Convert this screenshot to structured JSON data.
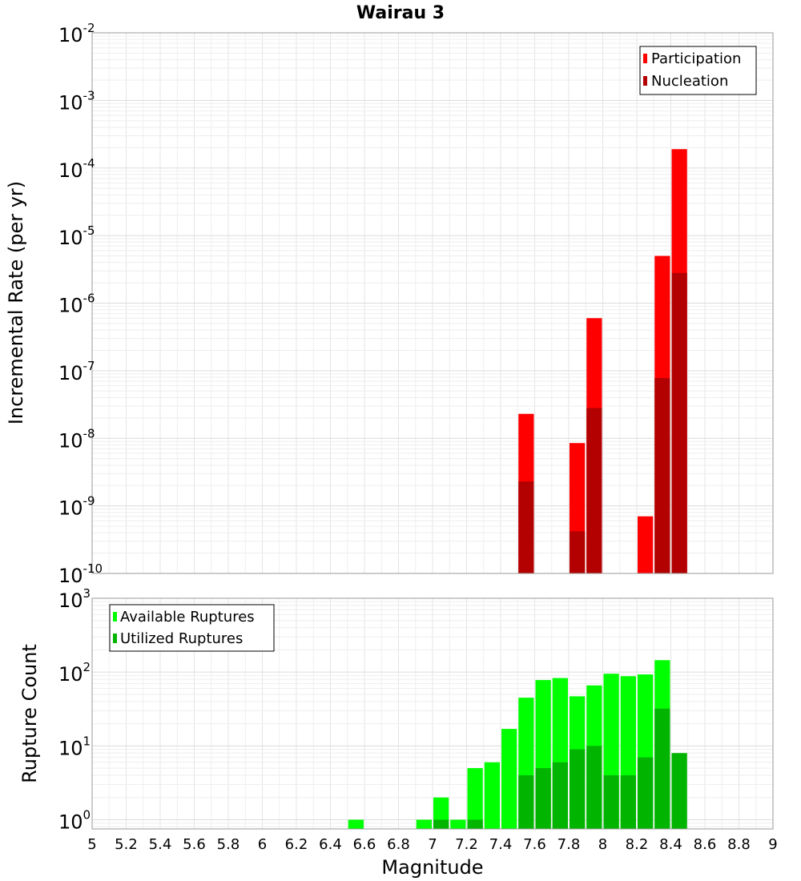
{
  "chart_data": [
    {
      "type": "bar",
      "title": "Wairau 3",
      "ylabel": "Incremental Rate (per yr)",
      "yscale": "log",
      "ylim": [
        1e-10,
        0.01
      ],
      "xlim": [
        5,
        9
      ],
      "y_tick_labels": [
        {
          "base": "10",
          "exp": "-10"
        },
        {
          "base": "10",
          "exp": "-9"
        },
        {
          "base": "10",
          "exp": "-8"
        },
        {
          "base": "10",
          "exp": "-7"
        },
        {
          "base": "10",
          "exp": "-6"
        },
        {
          "base": "10",
          "exp": "-5"
        },
        {
          "base": "10",
          "exp": "-4"
        },
        {
          "base": "10",
          "exp": "-3"
        },
        {
          "base": "10",
          "exp": "-2"
        }
      ],
      "grid": true,
      "legend_position": "top-right",
      "series": [
        {
          "name": "Participation",
          "color": "#ff0000",
          "points": [
            {
              "x": 7.55,
              "y": 2.3e-08
            },
            {
              "x": 7.85,
              "y": 8.5e-09
            },
            {
              "x": 7.95,
              "y": 6e-07
            },
            {
              "x": 8.25,
              "y": 7e-10
            },
            {
              "x": 8.35,
              "y": 5e-06
            },
            {
              "x": 8.45,
              "y": 0.00019
            }
          ]
        },
        {
          "name": "Nucleation",
          "color": "#b30000",
          "points": [
            {
              "x": 7.55,
              "y": 2.3e-09
            },
            {
              "x": 7.85,
              "y": 4.2e-10
            },
            {
              "x": 7.95,
              "y": 2.8e-08
            },
            {
              "x": 8.35,
              "y": 7.8e-08
            },
            {
              "x": 8.45,
              "y": 2.8e-06
            }
          ]
        }
      ]
    },
    {
      "type": "bar",
      "xlabel": "Magnitude",
      "ylabel": "Rupture Count",
      "yscale": "log",
      "ylim": [
        0.75,
        1000
      ],
      "xlim": [
        5,
        9
      ],
      "x_tick_labels": [
        "5",
        "5.2",
        "5.4",
        "5.6",
        "5.8",
        "6",
        "6.2",
        "6.4",
        "6.6",
        "6.8",
        "7",
        "7.2",
        "7.4",
        "7.6",
        "7.8",
        "8",
        "8.2",
        "8.4",
        "8.6",
        "8.8",
        "9"
      ],
      "y_tick_labels": [
        {
          "base": "10",
          "exp": "0"
        },
        {
          "base": "10",
          "exp": "1"
        },
        {
          "base": "10",
          "exp": "2"
        },
        {
          "base": "10",
          "exp": "3"
        }
      ],
      "grid": true,
      "legend_position": "top-left",
      "series": [
        {
          "name": "Available Ruptures",
          "color": "#00ff00",
          "points": [
            {
              "x": 6.55,
              "y": 1
            },
            {
              "x": 6.95,
              "y": 1
            },
            {
              "x": 7.05,
              "y": 2
            },
            {
              "x": 7.15,
              "y": 1
            },
            {
              "x": 7.25,
              "y": 5
            },
            {
              "x": 7.35,
              "y": 6
            },
            {
              "x": 7.45,
              "y": 17
            },
            {
              "x": 7.55,
              "y": 45
            },
            {
              "x": 7.65,
              "y": 78
            },
            {
              "x": 7.75,
              "y": 83
            },
            {
              "x": 7.85,
              "y": 47
            },
            {
              "x": 7.95,
              "y": 66
            },
            {
              "x": 8.05,
              "y": 95
            },
            {
              "x": 8.15,
              "y": 88
            },
            {
              "x": 8.25,
              "y": 93
            },
            {
              "x": 8.35,
              "y": 145
            }
          ]
        },
        {
          "name": "Utilized Ruptures",
          "color": "#00b400",
          "points": [
            {
              "x": 7.05,
              "y": 1
            },
            {
              "x": 7.25,
              "y": 1
            },
            {
              "x": 7.55,
              "y": 4
            },
            {
              "x": 7.65,
              "y": 5
            },
            {
              "x": 7.75,
              "y": 6
            },
            {
              "x": 7.85,
              "y": 9
            },
            {
              "x": 7.95,
              "y": 10
            },
            {
              "x": 8.05,
              "y": 4
            },
            {
              "x": 8.15,
              "y": 4
            },
            {
              "x": 8.25,
              "y": 7
            },
            {
              "x": 8.35,
              "y": 32
            },
            {
              "x": 8.45,
              "y": 8
            }
          ]
        }
      ]
    }
  ]
}
